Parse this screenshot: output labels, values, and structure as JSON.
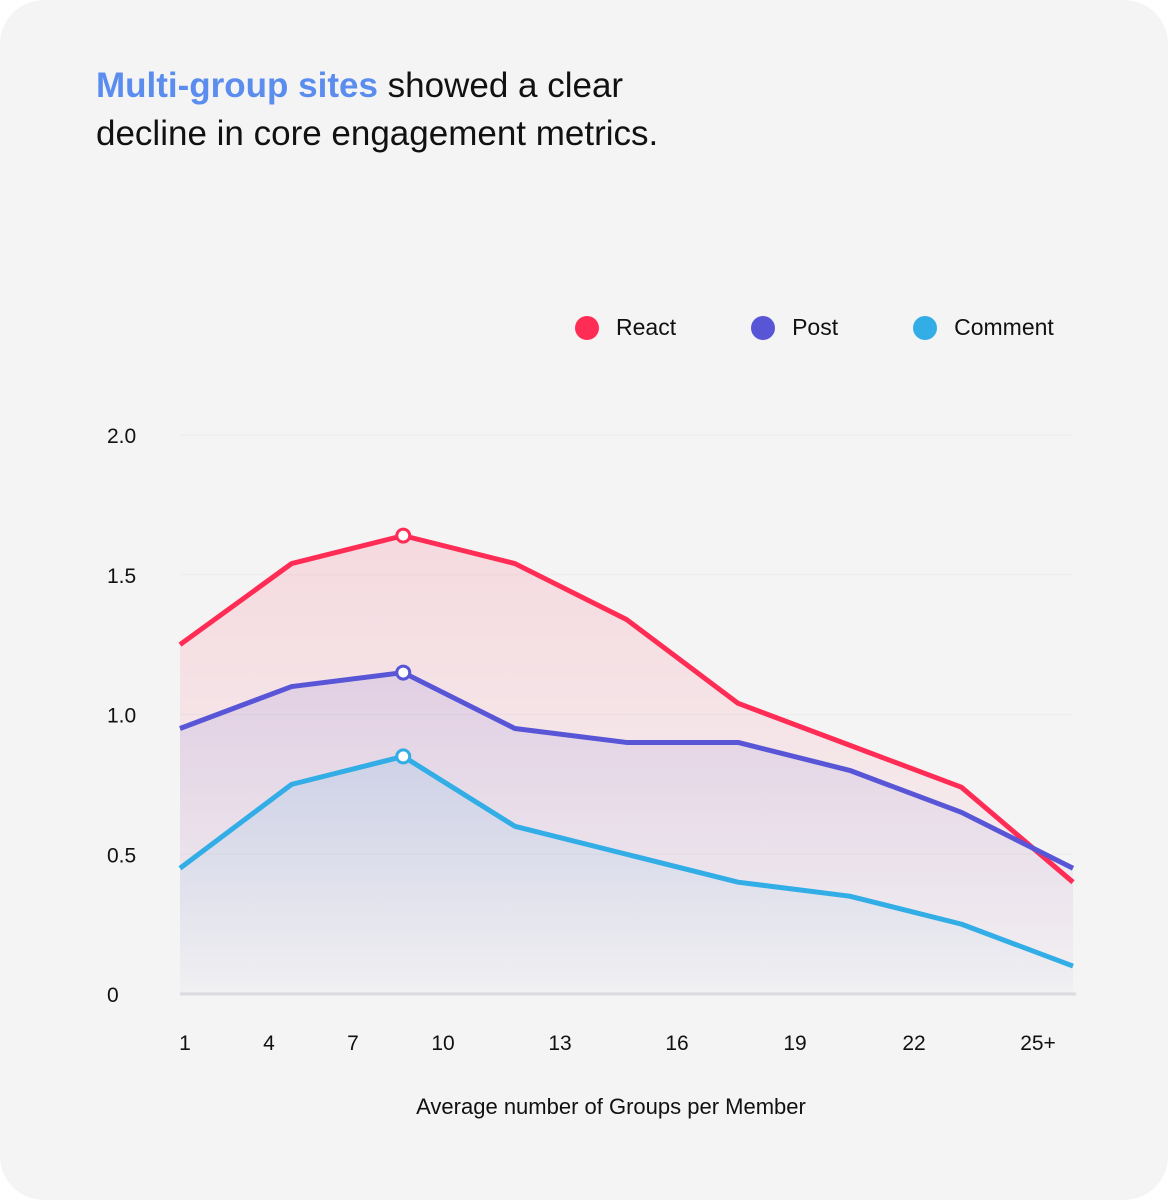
{
  "title": {
    "highlight": "Multi-group sites",
    "rest": " showed a clear decline in core engagement metrics."
  },
  "chart_data": {
    "type": "area",
    "title": "Multi-group sites showed a clear decline in core engagement metrics.",
    "xlabel": "Average number of Groups per Member",
    "ylabel": "",
    "x_tick_labels": [
      "1",
      "4",
      "7",
      "10",
      "13",
      "16",
      "19",
      "22",
      "25+"
    ],
    "y_tick_labels": [
      "0",
      "0.5",
      "1.0",
      "1.5",
      "2.0"
    ],
    "y_ticks": [
      0,
      0.5,
      1.0,
      1.5,
      2.0
    ],
    "ylim": [
      0,
      2.0
    ],
    "legend_position": "top-right",
    "highlight_index": 2,
    "series": [
      {
        "name": "React",
        "color": "#ff2d55",
        "values": [
          1.25,
          1.54,
          1.64,
          1.54,
          1.34,
          1.04,
          0.89,
          0.74,
          0.4
        ]
      },
      {
        "name": "Post",
        "color": "#5856d6",
        "values": [
          0.95,
          1.1,
          1.15,
          0.95,
          0.9,
          0.9,
          0.8,
          0.65,
          0.45
        ]
      },
      {
        "name": "Comment",
        "color": "#32ade6",
        "values": [
          0.45,
          0.75,
          0.85,
          0.6,
          0.5,
          0.4,
          0.35,
          0.25,
          0.1
        ]
      }
    ]
  }
}
